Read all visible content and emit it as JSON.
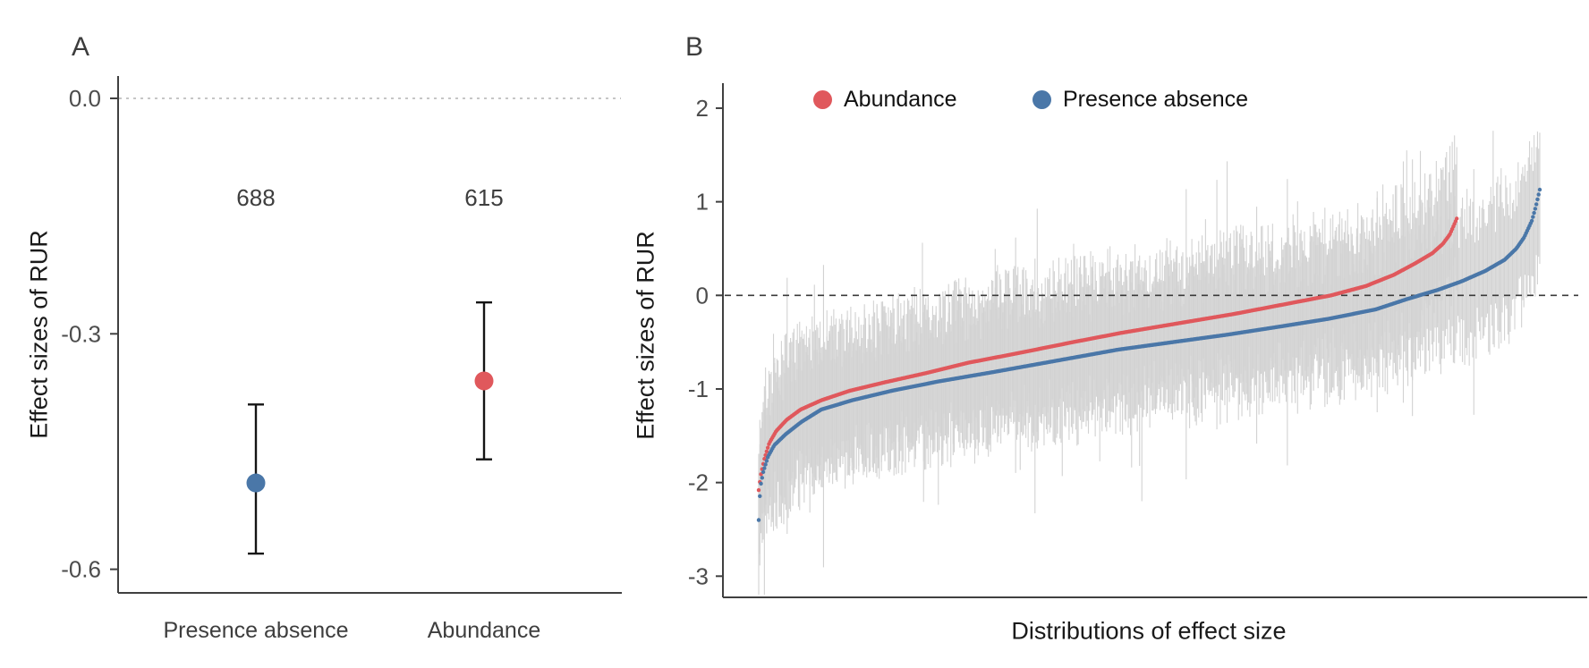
{
  "figure_title": "Effect sizes of RUR — meta-analysis panels",
  "chart_data": [
    {
      "type": "pointrange",
      "panel_label": "A",
      "ylabel": "Effect sizes of RUR",
      "yticks": [
        {
          "label": "0.0",
          "value": 0.0
        },
        {
          "label": "-0.3",
          "value": -0.3
        },
        {
          "label": "-0.6",
          "value": -0.6
        }
      ],
      "ylim": [
        -0.625,
        0.028
      ],
      "ref_line": {
        "value": 0,
        "style": "dashed",
        "color": "#b3b3b3"
      },
      "points": [
        {
          "category": "Presence absence",
          "n_label": "688",
          "mean": -0.49,
          "ci_low": -0.58,
          "ci_high": -0.39,
          "color": "#4a77a8"
        },
        {
          "category": "Abundance",
          "n_label": "615",
          "mean": -0.36,
          "ci_low": -0.46,
          "ci_high": -0.26,
          "color": "#e0585c"
        }
      ],
      "errorbar_color": "#141414",
      "axis_color": "#404040",
      "tick_label_color": "#4d4d4d",
      "annotation_color": "#3e3e3e"
    },
    {
      "type": "caterpillar",
      "panel_label": "B",
      "ylabel": "Effect sizes of RUR",
      "xlabel": "Distributions of effect size",
      "yticks": [
        {
          "label": "2",
          "value": 2
        },
        {
          "label": "1",
          "value": 1
        },
        {
          "label": "0",
          "value": 0
        },
        {
          "label": "-1",
          "value": -1
        },
        {
          "label": "-2",
          "value": -2
        },
        {
          "label": "-3",
          "value": -3
        }
      ],
      "ylim": [
        -3.22,
        2.27
      ],
      "ref_line": {
        "value": 0,
        "style": "dashed",
        "color": "#3a3a3a"
      },
      "legend": [
        {
          "label": "Abundance",
          "color": "#e0585c"
        },
        {
          "label": "Presence absence",
          "color": "#4a77a8"
        }
      ],
      "series": [
        {
          "name": "Abundance",
          "color": "#e0585c",
          "n": 615,
          "quantile_curve": [
            [
              0,
              -2.08
            ],
            [
              0.003,
              -1.92
            ],
            [
              0.008,
              -1.75
            ],
            [
              0.015,
              -1.58
            ],
            [
              0.025,
              -1.45
            ],
            [
              0.04,
              -1.33
            ],
            [
              0.06,
              -1.22
            ],
            [
              0.09,
              -1.12
            ],
            [
              0.13,
              -1.02
            ],
            [
              0.18,
              -0.93
            ],
            [
              0.24,
              -0.83
            ],
            [
              0.3,
              -0.72
            ],
            [
              0.37,
              -0.62
            ],
            [
              0.45,
              -0.5
            ],
            [
              0.52,
              -0.4
            ],
            [
              0.6,
              -0.3
            ],
            [
              0.68,
              -0.2
            ],
            [
              0.75,
              -0.1
            ],
            [
              0.82,
              0.0
            ],
            [
              0.87,
              0.1
            ],
            [
              0.91,
              0.22
            ],
            [
              0.94,
              0.34
            ],
            [
              0.965,
              0.45
            ],
            [
              0.98,
              0.55
            ],
            [
              0.99,
              0.65
            ],
            [
              1,
              0.82
            ]
          ]
        },
        {
          "name": "Presence absence",
          "color": "#4a77a8",
          "n": 688,
          "quantile_curve": [
            [
              0,
              -2.4
            ],
            [
              0.002,
              -2.05
            ],
            [
              0.006,
              -1.88
            ],
            [
              0.012,
              -1.72
            ],
            [
              0.02,
              -1.6
            ],
            [
              0.035,
              -1.48
            ],
            [
              0.055,
              -1.35
            ],
            [
              0.08,
              -1.22
            ],
            [
              0.12,
              -1.12
            ],
            [
              0.17,
              -1.02
            ],
            [
              0.23,
              -0.92
            ],
            [
              0.3,
              -0.82
            ],
            [
              0.38,
              -0.7
            ],
            [
              0.46,
              -0.58
            ],
            [
              0.53,
              -0.5
            ],
            [
              0.6,
              -0.42
            ],
            [
              0.67,
              -0.33
            ],
            [
              0.73,
              -0.25
            ],
            [
              0.79,
              -0.15
            ],
            [
              0.83,
              -0.04
            ],
            [
              0.87,
              0.06
            ],
            [
              0.9,
              0.15
            ],
            [
              0.93,
              0.26
            ],
            [
              0.955,
              0.38
            ],
            [
              0.97,
              0.5
            ],
            [
              0.98,
              0.62
            ],
            [
              0.99,
              0.8
            ],
            [
              0.995,
              0.95
            ],
            [
              1,
              1.13
            ]
          ]
        }
      ],
      "ci": {
        "color": "#d2d2d2",
        "half_width_range": [
          0.35,
          0.95
        ],
        "long_bar_chance": 0.03,
        "seed": 7
      },
      "axis_color": "#404040",
      "tick_label_color": "#4d4d4d"
    }
  ]
}
